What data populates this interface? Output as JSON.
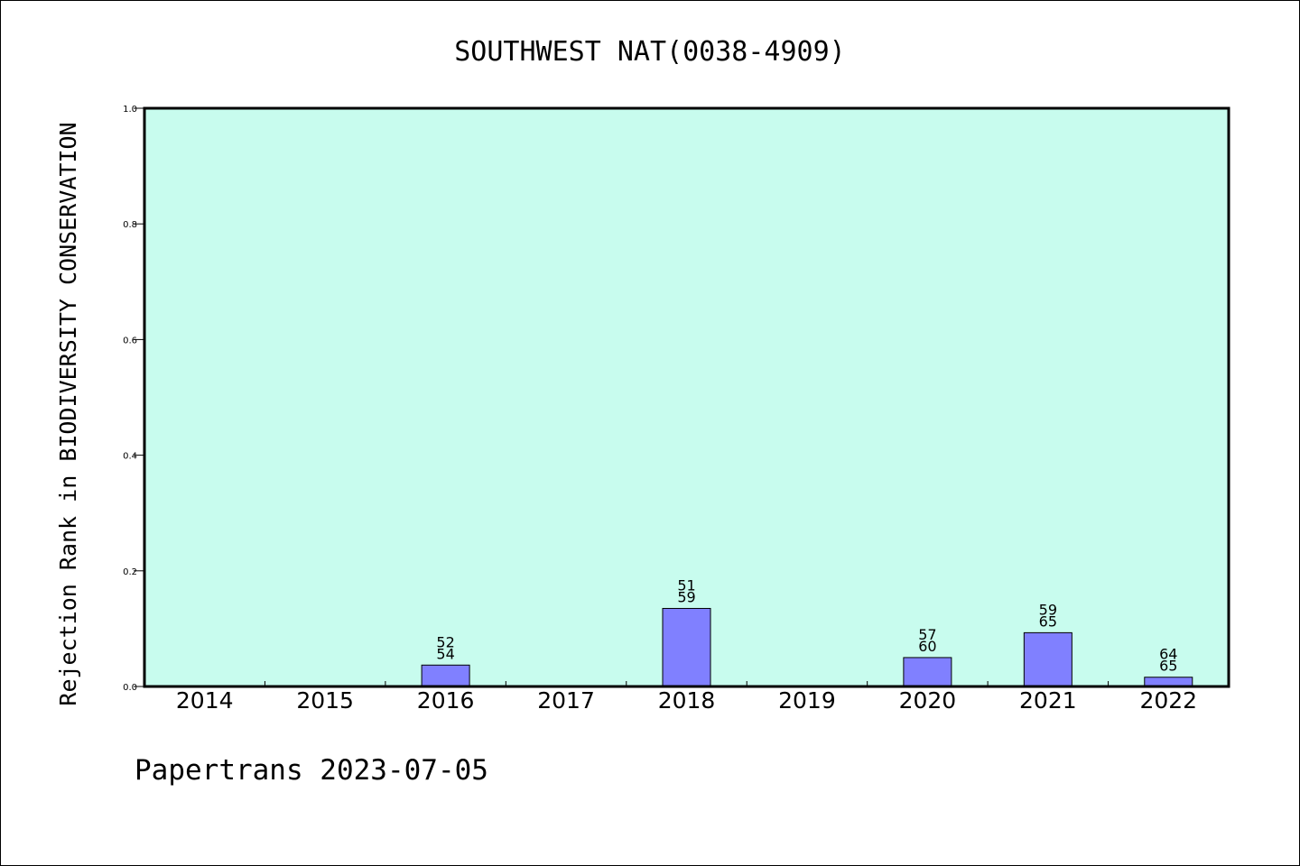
{
  "chart_data": {
    "type": "bar",
    "title": "SOUTHWEST NAT(0038-4909)",
    "xlabel": "",
    "ylabel": "Rejection Rank in BIODIVERSITY CONSERVATION",
    "categories": [
      "2014",
      "2015",
      "2016",
      "2017",
      "2018",
      "2019",
      "2020",
      "2021",
      "2022"
    ],
    "values": [
      null,
      null,
      0.037,
      null,
      0.135,
      null,
      0.05,
      0.093,
      0.016
    ],
    "bar_labels": [
      null,
      null,
      [
        "52",
        "54"
      ],
      null,
      [
        "51",
        "59"
      ],
      null,
      [
        "57",
        "60"
      ],
      [
        "59",
        "65"
      ],
      [
        "64",
        "65"
      ]
    ],
    "ylim": [
      0,
      1.0
    ],
    "yticks": [
      "0.0",
      "0.2",
      "0.4",
      "0.6",
      "0.8",
      "1.0"
    ],
    "grid": false,
    "colors": {
      "plot_background": "#c8fcee",
      "bar_fill": "#8080ff",
      "bar_stroke": "#000000",
      "axis": "#000000"
    }
  },
  "footer": {
    "text": "Papertrans 2023-07-05"
  }
}
